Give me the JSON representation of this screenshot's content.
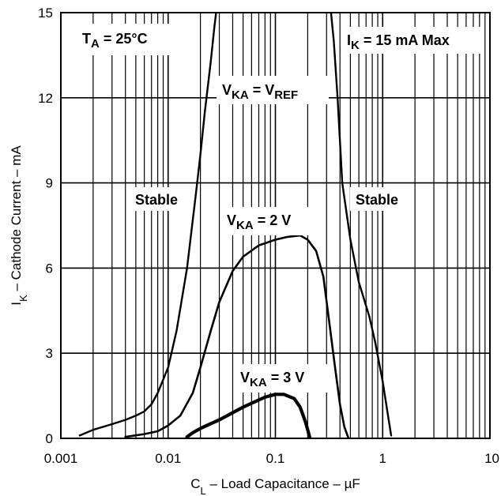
{
  "chart_data": {
    "type": "line",
    "x_scale": "log",
    "x_range": [
      0.001,
      10
    ],
    "y_range": [
      0,
      15
    ],
    "grid": true,
    "x_ticks": [
      "0.001",
      "0.01",
      "0.1",
      "1",
      "10"
    ],
    "x_tick_values": [
      0.001,
      0.01,
      0.1,
      1,
      10
    ],
    "y_ticks": [
      "0",
      "3",
      "6",
      "9",
      "12",
      "15"
    ],
    "y_tick_values": [
      0,
      3,
      6,
      9,
      12,
      15
    ],
    "xlabel": {
      "main": "C",
      "sub": "L",
      "rest": " – Load Capacitance – µF"
    },
    "ylabel": {
      "main": "I",
      "sub": "K",
      "rest": " – Cathode Current – mA"
    },
    "annotations": {
      "temperature": {
        "pre": "T",
        "sub": "A",
        "post": " = 25°C"
      },
      "max_current": {
        "pre": "I",
        "sub": "K",
        "post": " = 15 mA Max"
      },
      "stable_left": "Stable",
      "stable_right": "Stable",
      "vka_ref": {
        "pre": "V",
        "sub": "KA",
        "mid": " = V",
        "sub2": "REF"
      },
      "vka_2v": {
        "pre": "V",
        "sub": "KA",
        "post": " = 2 V"
      },
      "vka_3v": {
        "pre": "V",
        "sub": "KA",
        "post": " = 3 V"
      }
    },
    "series": [
      {
        "curve": "vka_ref",
        "x": [
          0.0015,
          0.002,
          0.003,
          0.004,
          0.005,
          0.006,
          0.007,
          0.008,
          0.01,
          0.012,
          0.015,
          0.018,
          0.02,
          0.022,
          0.025,
          0.027,
          0.028,
          0.029,
          0.32,
          0.33,
          0.35,
          0.38,
          0.42,
          0.5,
          0.6,
          0.75,
          0.85,
          1.0,
          1.1,
          1.2
        ],
        "y": [
          0.1,
          0.3,
          0.5,
          0.65,
          0.8,
          0.95,
          1.2,
          1.6,
          2.5,
          3.8,
          6.0,
          8.5,
          10.0,
          11.5,
          13.3,
          14.5,
          15.0,
          15.4,
          15.4,
          15.0,
          14.0,
          12.0,
          9.0,
          7.0,
          5.5,
          4.3,
          3.4,
          2.0,
          1.0,
          0.1
        ]
      },
      {
        "curve": "vka_2v",
        "x": [
          0.004,
          0.006,
          0.008,
          0.01,
          0.013,
          0.017,
          0.02,
          0.025,
          0.03,
          0.04,
          0.05,
          0.07,
          0.1,
          0.13,
          0.17,
          0.2,
          0.24,
          0.28,
          0.32,
          0.36,
          0.4,
          0.44,
          0.48
        ],
        "y": [
          0.05,
          0.15,
          0.25,
          0.45,
          0.8,
          1.6,
          2.5,
          3.8,
          4.8,
          5.9,
          6.4,
          6.8,
          7.0,
          7.1,
          7.15,
          7.0,
          6.6,
          5.7,
          4.0,
          2.5,
          1.2,
          0.4,
          0.0
        ]
      },
      {
        "curve": "vka_3v",
        "x": [
          0.015,
          0.017,
          0.02,
          0.03,
          0.05,
          0.08,
          0.1,
          0.12,
          0.15,
          0.17,
          0.19,
          0.2,
          0.21
        ],
        "y": [
          0.05,
          0.2,
          0.35,
          0.65,
          1.1,
          1.45,
          1.55,
          1.55,
          1.4,
          1.1,
          0.6,
          0.3,
          0.0
        ]
      }
    ]
  }
}
